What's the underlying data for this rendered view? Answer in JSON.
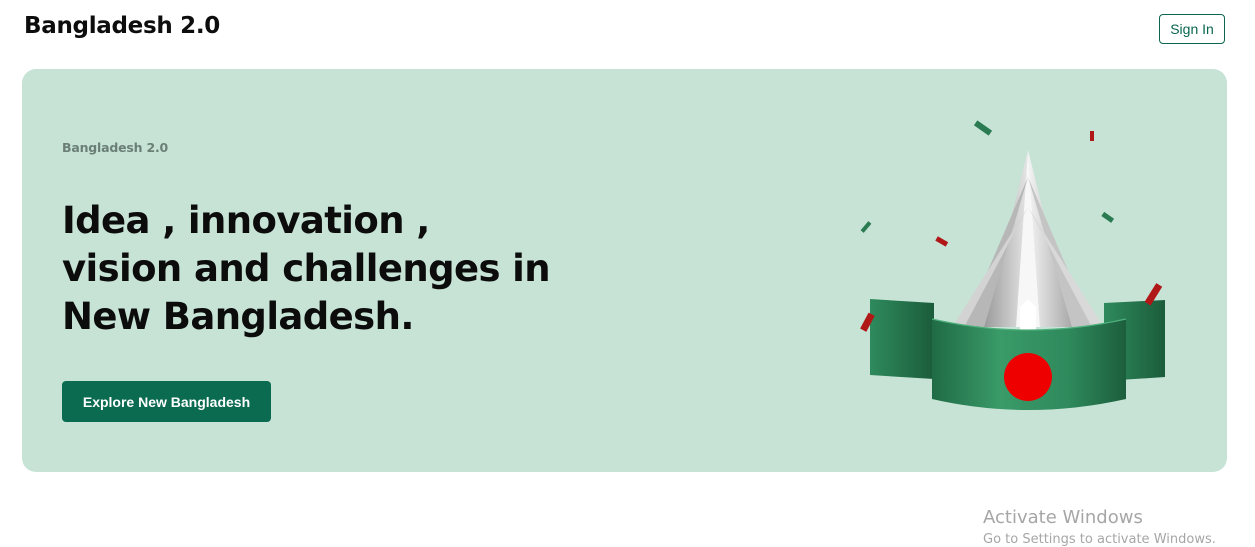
{
  "header": {
    "brand": "Bangladesh 2.0",
    "sign_in_label": "Sign In"
  },
  "hero": {
    "eyebrow": "Bangladesh 2.0",
    "headline_lines": [
      "Idea , innovation ,",
      "vision and challenges in",
      "New Bangladesh."
    ],
    "cta_label": "Explore New Bangladesh",
    "illustration_icon": "national-monument-flag-ribbon-illustration"
  },
  "watermark": {
    "title": "Activate Windows",
    "subtitle": "Go to Settings to activate Windows."
  },
  "colors": {
    "accent": "#0b6b50",
    "hero_bg": "#c6e3d6",
    "flag_green": "#2f8a5f",
    "flag_red": "#ee0000"
  }
}
